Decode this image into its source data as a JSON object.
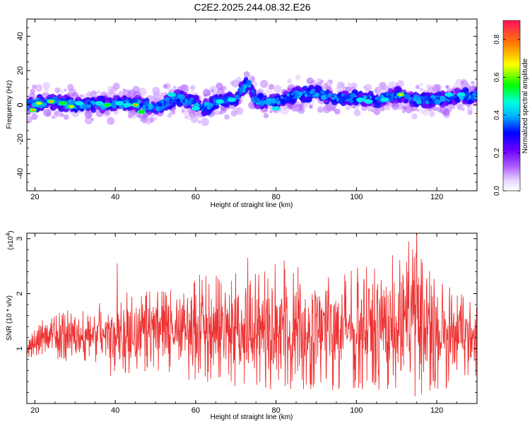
{
  "title": "C2E2.2025.244.08.32.E26",
  "chart_data": [
    {
      "type": "heatmap",
      "xlabel": "Height of straight line (km)",
      "ylabel": "Frequency (Hz)",
      "xlim": [
        18,
        130
      ],
      "ylim": [
        -50,
        50
      ],
      "x_ticks": [
        20,
        40,
        60,
        80,
        100,
        120
      ],
      "y_ticks": [
        -40,
        -20,
        0,
        20,
        40
      ],
      "colorbar": {
        "label": "Normalized spectral amplitude",
        "range": [
          0,
          0.9
        ],
        "ticks": [
          0.0,
          0.2,
          0.4,
          0.6,
          0.8
        ]
      },
      "ridge": {
        "x": [
          18,
          20,
          25,
          30,
          35,
          40,
          45,
          50,
          55,
          60,
          62,
          65,
          70,
          73,
          75,
          80,
          85,
          90,
          95,
          100,
          105,
          110,
          115,
          120,
          125,
          130
        ],
        "y": [
          0,
          1,
          2,
          0,
          0,
          1,
          1,
          -2,
          4,
          1,
          -2,
          2,
          3,
          14,
          2,
          2,
          6,
          7,
          4,
          4,
          3,
          6,
          3,
          3,
          5,
          5
        ]
      },
      "spots": [
        {
          "x": 19.5,
          "y": -3,
          "amp": 0.8
        },
        {
          "x": 21,
          "y": 1,
          "amp": 0.7
        },
        {
          "x": 24,
          "y": 2,
          "amp": 0.85
        },
        {
          "x": 27,
          "y": 1,
          "amp": 0.6
        },
        {
          "x": 29,
          "y": -1,
          "amp": 0.7
        },
        {
          "x": 31,
          "y": 1,
          "amp": 0.55
        },
        {
          "x": 36,
          "y": 1,
          "amp": 0.5
        },
        {
          "x": 38,
          "y": 0,
          "amp": 0.6
        },
        {
          "x": 41,
          "y": 1,
          "amp": 0.5
        },
        {
          "x": 43,
          "y": 0,
          "amp": 0.45
        },
        {
          "x": 45,
          "y": 0,
          "amp": 0.9
        },
        {
          "x": 46.5,
          "y": -4,
          "amp": 0.65
        },
        {
          "x": 52,
          "y": 0,
          "amp": 0.4
        },
        {
          "x": 54,
          "y": 6,
          "amp": 0.55
        },
        {
          "x": 56,
          "y": 0,
          "amp": 0.35
        },
        {
          "x": 60,
          "y": -2,
          "amp": 0.45
        },
        {
          "x": 63,
          "y": -1,
          "amp": 0.4
        },
        {
          "x": 66,
          "y": 2,
          "amp": 0.45
        },
        {
          "x": 69,
          "y": 3,
          "amp": 0.5
        },
        {
          "x": 73,
          "y": 13,
          "amp": 0.4
        },
        {
          "x": 76,
          "y": 3,
          "amp": 0.35
        },
        {
          "x": 80,
          "y": -2,
          "amp": 0.45
        },
        {
          "x": 82,
          "y": 2,
          "amp": 0.4
        },
        {
          "x": 86,
          "y": 7,
          "amp": 0.4
        },
        {
          "x": 88,
          "y": 6,
          "amp": 0.4
        },
        {
          "x": 92,
          "y": 4,
          "amp": 0.35
        },
        {
          "x": 96,
          "y": 3,
          "amp": 0.4
        },
        {
          "x": 101,
          "y": 3,
          "amp": 0.45
        },
        {
          "x": 103,
          "y": 2,
          "amp": 0.5
        },
        {
          "x": 107,
          "y": 3,
          "amp": 0.45
        },
        {
          "x": 109,
          "y": 12,
          "amp": 0.35
        },
        {
          "x": 111,
          "y": 6,
          "amp": 0.7
        },
        {
          "x": 116,
          "y": 4,
          "amp": 0.35
        },
        {
          "x": 119,
          "y": 5,
          "amp": 0.4
        },
        {
          "x": 123,
          "y": 6,
          "amp": 0.45
        },
        {
          "x": 126,
          "y": 6,
          "amp": 0.45
        },
        {
          "x": 129,
          "y": 4,
          "amp": 0.4
        }
      ]
    },
    {
      "type": "line",
      "xlabel": "Height of straight line (km)",
      "ylabel": "SNR (10 * v/v)",
      "scale_label": "(x10^4)",
      "xlim": [
        18,
        130
      ],
      "ylim": [
        0,
        3.1
      ],
      "x_ticks": [
        20,
        40,
        60,
        80,
        100,
        120
      ],
      "y_ticks": [
        1,
        2,
        3
      ],
      "line_color": "#ee3333",
      "envelope": {
        "x": [
          18,
          22,
          30,
          38,
          40,
          45,
          50,
          55,
          60,
          65,
          70,
          75,
          80,
          85,
          90,
          95,
          100,
          105,
          110,
          115,
          120,
          125,
          130
        ],
        "low": [
          0.85,
          0.8,
          0.7,
          0.6,
          0.35,
          0.6,
          0.55,
          0.4,
          0.3,
          0.35,
          0.3,
          0.25,
          0.25,
          0.2,
          0.25,
          0.25,
          0.2,
          0.25,
          0.2,
          0.1,
          0.2,
          0.3,
          0.4
        ],
        "high": [
          1.2,
          1.55,
          1.75,
          1.9,
          2.3,
          2.0,
          2.1,
          2.2,
          2.35,
          2.35,
          2.4,
          2.5,
          2.55,
          2.5,
          2.5,
          2.4,
          2.5,
          2.5,
          2.6,
          2.9,
          2.3,
          2.1,
          1.9
        ]
      },
      "peaks": [
        {
          "x": 40.5,
          "y": 2.55
        },
        {
          "x": 73,
          "y": 2.65
        },
        {
          "x": 82,
          "y": 2.6
        },
        {
          "x": 109,
          "y": 2.7
        },
        {
          "x": 113,
          "y": 2.95
        },
        {
          "x": 115,
          "y": 3.15
        }
      ]
    }
  ]
}
